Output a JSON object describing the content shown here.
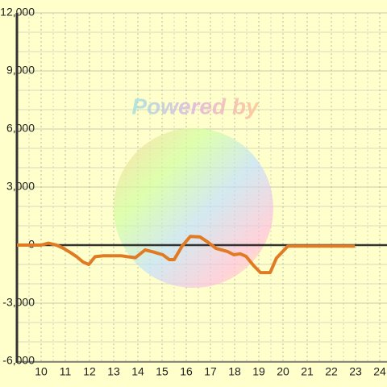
{
  "chart_data": {
    "type": "line",
    "watermark": "Powered by",
    "x": [
      9,
      10,
      10.3,
      10.63,
      10.9,
      11.23,
      11.47,
      11.73,
      11.97,
      12.23,
      12.57,
      13.3,
      13.57,
      13.9,
      14.3,
      14.63,
      15.03,
      15.3,
      15.5,
      15.83,
      16.17,
      16.57,
      16.9,
      17.23,
      17.7,
      17.97,
      18.23,
      18.47,
      18.8,
      19.07,
      19.47,
      19.73,
      20.2,
      22.97
    ],
    "series": [
      {
        "color": "#e07b24",
        "values": [
          0,
          0,
          100,
          0,
          -150,
          -400,
          -600,
          -870,
          -1000,
          -600,
          -550,
          -550,
          -600,
          -650,
          -250,
          -350,
          -500,
          -750,
          -750,
          -50,
          450,
          420,
          150,
          -170,
          -330,
          -500,
          -450,
          -580,
          -1080,
          -1420,
          -1420,
          -670,
          -50,
          -50
        ]
      }
    ],
    "xlim": [
      9,
      24.3
    ],
    "xticks": [
      10,
      11,
      12,
      13,
      14,
      15,
      16,
      17,
      18,
      19,
      20,
      21,
      22,
      23,
      24
    ],
    "ylim": [
      -6000,
      12000
    ],
    "yticks": [
      {
        "value": -6000,
        "label": "-6,000"
      },
      {
        "value": -3000,
        "label": "-3,000"
      },
      0,
      {
        "value": 3000,
        "label": "3,000"
      },
      {
        "value": 6000,
        "label": "6,000"
      },
      {
        "value": 9000,
        "label": "9,000"
      },
      {
        "value": 12000,
        "label": "12,000"
      }
    ],
    "grid": true
  }
}
